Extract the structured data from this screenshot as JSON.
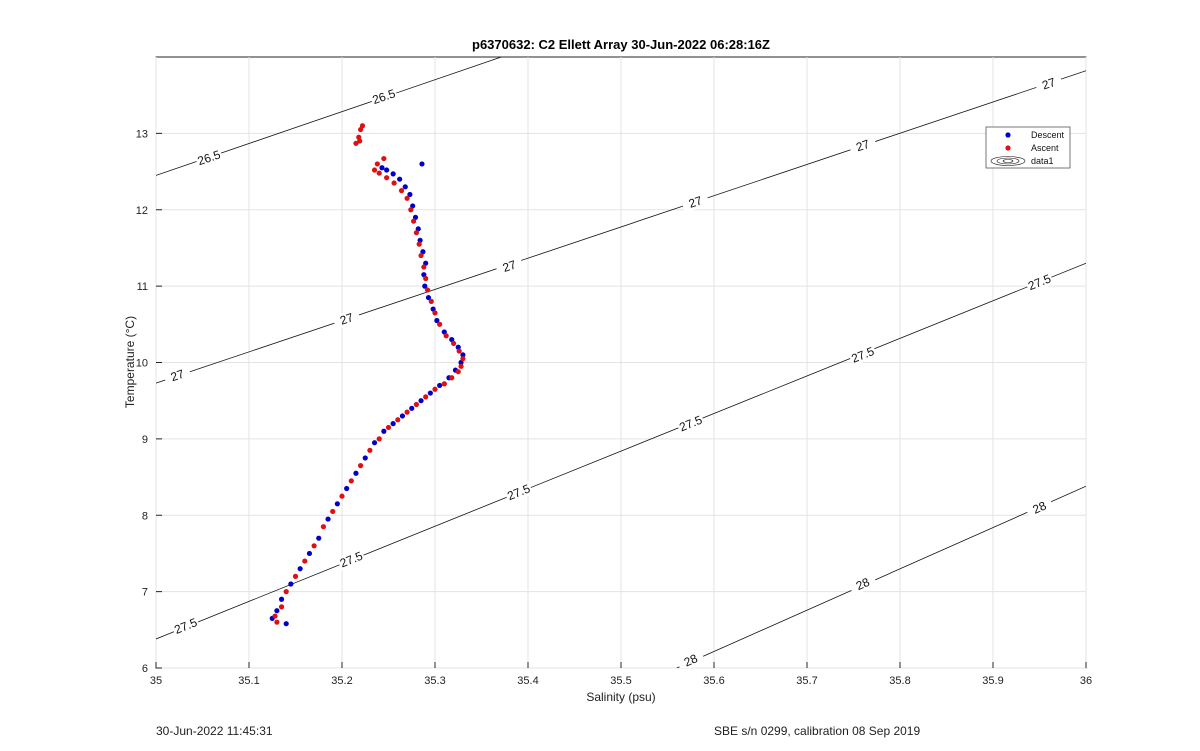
{
  "chart_data": {
    "type": "scatter",
    "title": "p6370632: C2 Ellett Array 30-Jun-2022 06:28:16Z",
    "xlabel": "Salinity (psu)",
    "ylabel": "Temperature (°C)",
    "xlim": [
      35,
      36
    ],
    "ylim": [
      6,
      14
    ],
    "xticks": [
      "35",
      "35.1",
      "35.2",
      "35.3",
      "35.4",
      "35.5",
      "35.6",
      "35.7",
      "35.8",
      "35.9",
      "36"
    ],
    "yticks": [
      "6",
      "7",
      "8",
      "9",
      "10",
      "11",
      "12",
      "13"
    ],
    "grid": true,
    "legend_position": "top-right",
    "legend": [
      "Descent",
      "Ascent",
      "data1"
    ],
    "series": [
      {
        "name": "Descent",
        "color": "#0000cc",
        "x": [
          35.14,
          35.125,
          35.13,
          35.135,
          35.145,
          35.155,
          35.165,
          35.175,
          35.185,
          35.195,
          35.205,
          35.215,
          35.225,
          35.235,
          35.245,
          35.255,
          35.265,
          35.275,
          35.285,
          35.295,
          35.305,
          35.315,
          35.322,
          35.328,
          35.33,
          35.325,
          35.318,
          35.31,
          35.302,
          35.298,
          35.293,
          35.289,
          35.288,
          35.29,
          35.287,
          35.284,
          35.282,
          35.279,
          35.276,
          35.273,
          35.268,
          35.262,
          35.255,
          35.248,
          35.243,
          35.286
        ],
        "y": [
          6.58,
          6.65,
          6.75,
          6.9,
          7.1,
          7.3,
          7.5,
          7.7,
          7.95,
          8.15,
          8.35,
          8.55,
          8.75,
          8.95,
          9.1,
          9.2,
          9.3,
          9.4,
          9.5,
          9.6,
          9.7,
          9.8,
          9.9,
          10.0,
          10.1,
          10.2,
          10.3,
          10.4,
          10.55,
          10.7,
          10.85,
          11.0,
          11.15,
          11.3,
          11.45,
          11.6,
          11.75,
          11.9,
          12.05,
          12.2,
          12.3,
          12.4,
          12.47,
          12.52,
          12.55,
          12.6
        ]
      },
      {
        "name": "Ascent",
        "color": "#dd1111",
        "x": [
          35.13,
          35.128,
          35.135,
          35.14,
          35.15,
          35.16,
          35.17,
          35.18,
          35.19,
          35.2,
          35.21,
          35.22,
          35.23,
          35.24,
          35.25,
          35.26,
          35.27,
          35.28,
          35.29,
          35.3,
          35.31,
          35.318,
          35.325,
          35.328,
          35.33,
          35.326,
          35.32,
          35.312,
          35.305,
          35.3,
          35.296,
          35.292,
          35.29,
          35.288,
          35.285,
          35.283,
          35.28,
          35.277,
          35.274,
          35.27,
          35.264,
          35.256,
          35.248,
          35.24,
          35.235,
          35.238,
          35.245,
          35.215,
          35.218,
          35.22,
          35.222,
          35.219
        ],
        "y": [
          6.6,
          6.68,
          6.8,
          7.0,
          7.2,
          7.4,
          7.6,
          7.85,
          8.05,
          8.25,
          8.45,
          8.65,
          8.85,
          9.0,
          9.15,
          9.25,
          9.35,
          9.45,
          9.55,
          9.65,
          9.72,
          9.8,
          9.88,
          9.95,
          10.05,
          10.15,
          10.25,
          10.35,
          10.5,
          10.65,
          10.8,
          10.95,
          11.1,
          11.25,
          11.4,
          11.55,
          11.7,
          11.85,
          12.0,
          12.15,
          12.25,
          12.35,
          12.42,
          12.48,
          12.52,
          12.6,
          12.67,
          12.87,
          12.95,
          13.05,
          13.1,
          12.9
        ]
      },
      {
        "name": "data1",
        "type": "contour",
        "color": "#000000",
        "levels": [
          26.5,
          27,
          27.5,
          28
        ]
      }
    ]
  },
  "footer": {
    "timestamp": "30-Jun-2022 11:45:31",
    "calibration": "SBE s/n 0299, calibration 08 Sep 2019"
  }
}
